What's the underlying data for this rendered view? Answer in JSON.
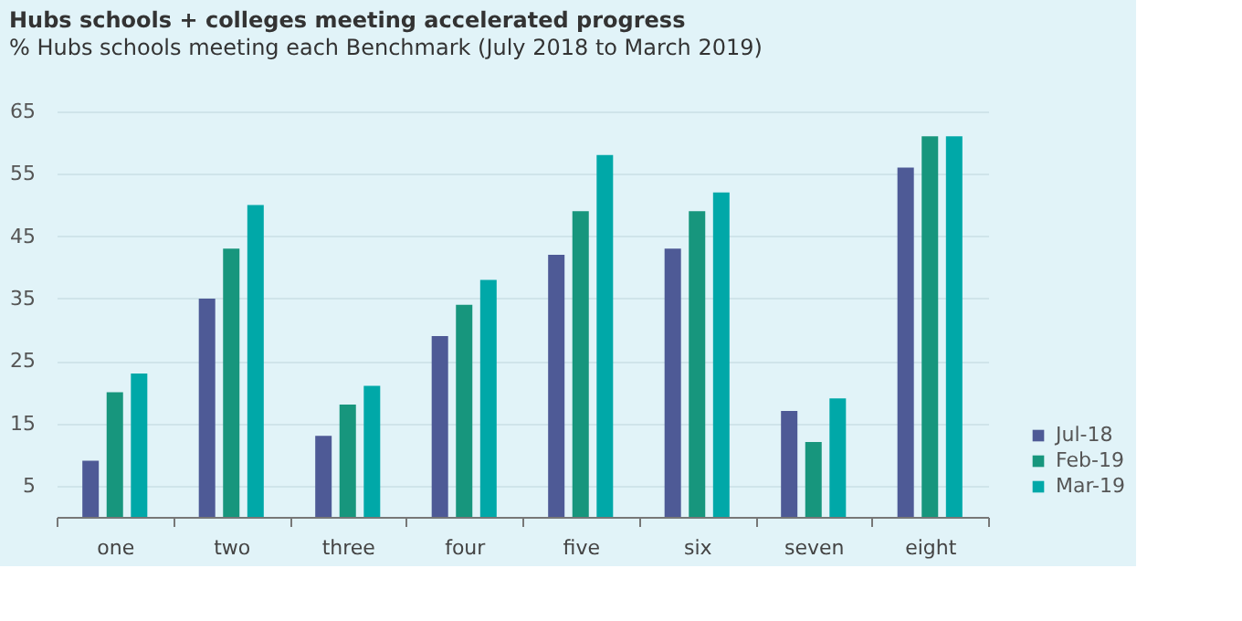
{
  "chart_data": {
    "type": "bar",
    "title": "Hubs schools + colleges meeting accelerated progress",
    "subtitle": "% Hubs schools meeting each Benchmark (July 2018 to March 2019)",
    "categories": [
      "one",
      "two",
      "three",
      "four",
      "five",
      "six",
      "seven",
      "eight"
    ],
    "series": [
      {
        "name": "Jul-18",
        "color": "#4e5a96",
        "values": [
          9,
          35,
          13,
          29,
          42,
          43,
          17,
          56
        ]
      },
      {
        "name": "Feb-19",
        "color": "#17967d",
        "values": [
          20,
          43,
          18,
          34,
          49,
          49,
          12,
          61
        ]
      },
      {
        "name": "Mar-19",
        "color": "#00a8a8",
        "values": [
          23,
          50,
          21,
          38,
          58,
          52,
          19,
          61
        ]
      }
    ],
    "ylim": [
      0,
      65
    ],
    "yticks": [
      5,
      15,
      25,
      35,
      45,
      55,
      65
    ],
    "grid": "y",
    "legend": "bottom right"
  }
}
